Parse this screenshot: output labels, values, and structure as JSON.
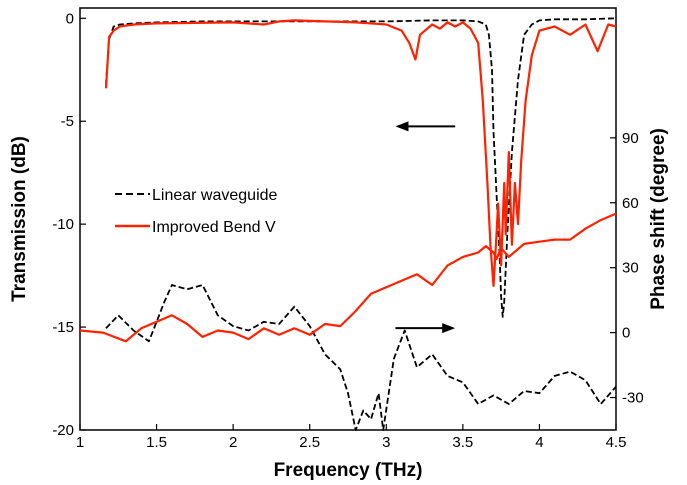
{
  "chart_data": {
    "type": "line",
    "xlabel": "Frequency (THz)",
    "ylabel_left": "Transmission (dB)",
    "ylabel_right": "Phase shift (degree)",
    "xlim": [
      1,
      4.5
    ],
    "ylim_left": [
      -20,
      0.5
    ],
    "ylim_right": [
      -45,
      150
    ],
    "x_ticks": [
      1,
      1.5,
      2,
      2.5,
      3,
      3.5,
      4,
      4.5
    ],
    "x_tick_labels": [
      "1",
      "1.5",
      "2",
      "2.5",
      "3",
      "3.5",
      "4",
      "4.5"
    ],
    "y_left_ticks": [
      0,
      -5,
      -10,
      -15,
      -20
    ],
    "y_left_tick_labels": [
      "0",
      "-5",
      "-10",
      "-15",
      "-20"
    ],
    "y_right_ticks": [
      90,
      60,
      30,
      0,
      -30
    ],
    "y_right_tick_labels": [
      "90",
      "60",
      "30",
      "0",
      "-30"
    ],
    "legend_position": "middle-left",
    "series": [
      {
        "name": "Linear waveguide",
        "quantity": "transmission",
        "axis": "left",
        "color": "#000000",
        "dash": "dashed",
        "x": [
          1.17,
          1.19,
          1.22,
          1.26,
          1.35,
          1.5,
          1.8,
          2.1,
          2.4,
          2.7,
          3.0,
          3.3,
          3.5,
          3.6,
          3.65,
          3.67,
          3.69,
          3.7,
          3.72,
          3.74,
          3.75,
          3.76,
          3.77,
          3.79,
          3.82,
          3.86,
          3.9,
          3.95,
          4.0,
          4.1,
          4.3,
          4.5
        ],
        "y": [
          -3.2,
          -1.0,
          -0.4,
          -0.3,
          -0.25,
          -0.2,
          -0.15,
          -0.15,
          -0.15,
          -0.15,
          -0.15,
          -0.1,
          -0.1,
          -0.15,
          -0.3,
          -0.8,
          -2.5,
          -5.5,
          -8.5,
          -11.5,
          -13.5,
          -14.5,
          -13.8,
          -10.5,
          -6.5,
          -3.0,
          -0.8,
          -0.3,
          -0.1,
          -0.05,
          -0.05,
          0.0
        ]
      },
      {
        "name": "Improved Bend V",
        "quantity": "transmission",
        "axis": "left",
        "color": "#ff2200",
        "dash": "solid",
        "x": [
          1.17,
          1.19,
          1.22,
          1.26,
          1.35,
          1.5,
          2.0,
          2.2,
          2.3,
          2.4,
          2.8,
          3.0,
          3.1,
          3.15,
          3.19,
          3.22,
          3.3,
          3.35,
          3.4,
          3.45,
          3.5,
          3.55,
          3.6,
          3.63,
          3.66,
          3.68,
          3.7,
          3.72,
          3.73,
          3.75,
          3.77,
          3.78,
          3.8,
          3.82,
          3.84,
          3.86,
          3.88,
          3.91,
          3.95,
          4.0,
          4.1,
          4.2,
          4.3,
          4.38,
          4.45,
          4.5
        ],
        "y": [
          -3.4,
          -0.9,
          -0.6,
          -0.4,
          -0.3,
          -0.25,
          -0.2,
          -0.3,
          -0.15,
          -0.1,
          -0.2,
          -0.3,
          -0.6,
          -1.2,
          -2.0,
          -0.8,
          -0.3,
          -0.5,
          -0.2,
          -0.4,
          -0.2,
          -0.5,
          -1.2,
          -4.0,
          -8.0,
          -11.0,
          -13.0,
          -10.5,
          -9.0,
          -12.0,
          -8.0,
          -10.5,
          -6.5,
          -11.0,
          -8.0,
          -10.0,
          -7.0,
          -4.0,
          -1.8,
          -0.6,
          -0.4,
          -0.8,
          -0.3,
          -1.6,
          -0.3,
          -0.4
        ]
      },
      {
        "name": "Linear waveguide",
        "quantity": "phase",
        "axis": "right",
        "color": "#000000",
        "dash": "dashed",
        "x": [
          1.17,
          1.25,
          1.35,
          1.45,
          1.5,
          1.55,
          1.6,
          1.7,
          1.8,
          1.9,
          2.0,
          2.1,
          2.2,
          2.3,
          2.4,
          2.5,
          2.6,
          2.7,
          2.75,
          2.8,
          2.85,
          2.9,
          2.95,
          2.98,
          3.05,
          3.12,
          3.2,
          3.3,
          3.4,
          3.5,
          3.6,
          3.7,
          3.8,
          3.9,
          4.0,
          4.1,
          4.2,
          4.3,
          4.4,
          4.5
        ],
        "y": [
          2,
          8,
          1,
          -4,
          5,
          14,
          22,
          20,
          22,
          8,
          3,
          1,
          5,
          4,
          12,
          3,
          -10,
          -17,
          -28,
          -45,
          -36,
          -40,
          -28,
          -45,
          -12,
          1,
          -16,
          -10,
          -20,
          -23,
          -33,
          -29,
          -33,
          -27,
          -28,
          -20,
          -18,
          -22,
          -33,
          -25
        ]
      },
      {
        "name": "Improved Bend V",
        "quantity": "phase",
        "axis": "right",
        "color": "#ff2200",
        "dash": "solid",
        "x": [
          1.0,
          1.15,
          1.3,
          1.4,
          1.5,
          1.6,
          1.7,
          1.8,
          1.9,
          2.0,
          2.1,
          2.2,
          2.3,
          2.4,
          2.5,
          2.6,
          2.7,
          2.8,
          2.9,
          3.0,
          3.1,
          3.2,
          3.3,
          3.4,
          3.5,
          3.6,
          3.65,
          3.7,
          3.72,
          3.75,
          3.8,
          3.9,
          4.0,
          4.1,
          4.2,
          4.3,
          4.4,
          4.5
        ],
        "y": [
          1,
          0,
          -4,
          2,
          5,
          8,
          4,
          -2,
          1,
          0,
          -3,
          2,
          -1,
          2,
          -1,
          4,
          3,
          10,
          18,
          21,
          24,
          27,
          22,
          31,
          35,
          37,
          40,
          37,
          34,
          39,
          35,
          41,
          42,
          43,
          43,
          48,
          52,
          55
        ]
      }
    ],
    "annotations": [
      {
        "type": "arrow",
        "direction": "left",
        "axis": "left",
        "x_from": 3.45,
        "x_to": 3.06,
        "y": -5.25
      },
      {
        "type": "arrow",
        "direction": "right",
        "axis": "left",
        "x_from": 3.06,
        "x_to": 3.45,
        "y": -15.05
      }
    ]
  }
}
